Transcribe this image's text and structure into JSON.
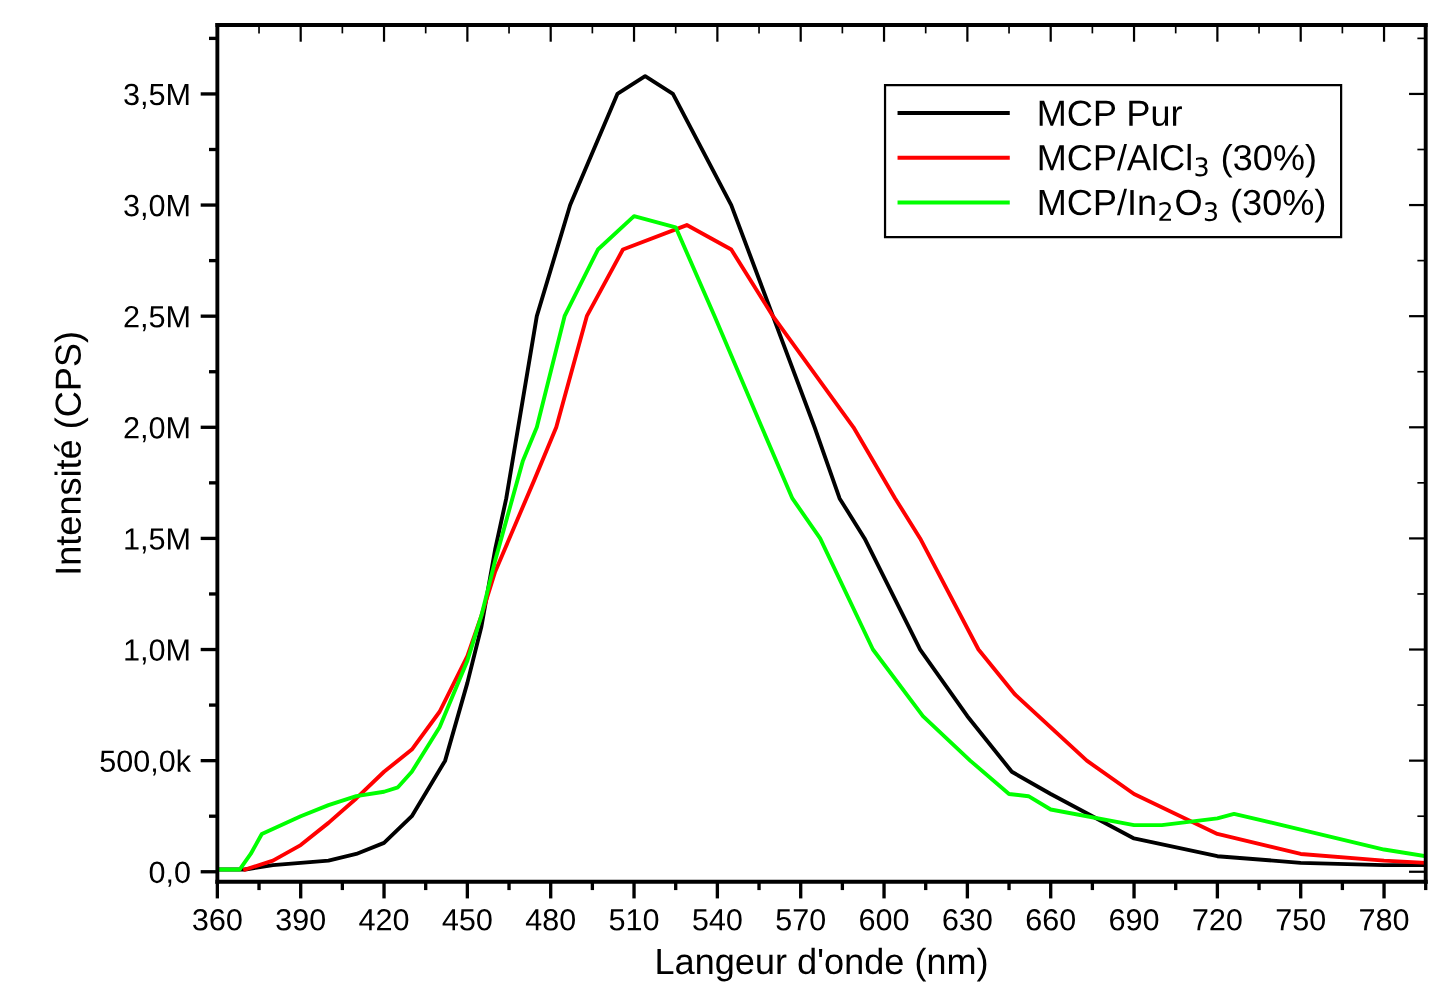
{
  "chart_data": {
    "type": "line",
    "xlabel": "Langeur d'onde (nm)",
    "ylabel": "Intensité (CPS)",
    "xlim": [
      360,
      795
    ],
    "ylim": [
      -45000,
      3810000
    ],
    "xticks": [
      360,
      390,
      420,
      450,
      480,
      510,
      540,
      570,
      600,
      630,
      660,
      690,
      720,
      750,
      780
    ],
    "yticks": [
      {
        "value": 0,
        "label": "0,0"
      },
      {
        "value": 500000,
        "label": "500,0k"
      },
      {
        "value": 1000000,
        "label": "1,0M"
      },
      {
        "value": 1500000,
        "label": "1,5M"
      },
      {
        "value": 2000000,
        "label": "2,0M"
      },
      {
        "value": 2500000,
        "label": "2,5M"
      },
      {
        "value": 3000000,
        "label": "3,0M"
      },
      {
        "value": 3500000,
        "label": "3,5M"
      }
    ],
    "grid": false,
    "legend": "top right",
    "marker": "none",
    "line_style": "solid",
    "series": [
      {
        "name": "MCP Pur",
        "color": "#000000",
        "x": [
          360,
          370,
          380,
          390,
          400,
          410,
          420,
          430,
          442,
          450,
          455,
          460,
          464,
          475,
          487,
          504,
          514,
          524,
          545,
          560,
          575,
          584,
          593,
          613,
          630,
          646,
          660,
          690,
          720,
          750,
          780,
          795
        ],
        "values": [
          10000,
          10000,
          30000,
          40000,
          50000,
          80000,
          130000,
          250000,
          500000,
          850000,
          1100000,
          1450000,
          1680000,
          2500000,
          3000000,
          3500000,
          3580000,
          3500000,
          3000000,
          2500000,
          2000000,
          1680000,
          1500000,
          1000000,
          700000,
          450000,
          350000,
          150000,
          70000,
          40000,
          30000,
          30000
        ]
      },
      {
        "name": "MCP/AlCl$_{3}$ (30%)",
        "color": "#ff0000",
        "x": [
          370,
          380,
          390,
          400,
          410,
          420,
          430,
          440,
          450,
          455,
          460,
          474,
          482,
          493,
          506,
          529,
          545,
          560,
          589,
          604,
          613,
          634,
          647,
          673,
          690,
          720,
          750,
          780,
          795
        ],
        "values": [
          10000,
          50000,
          120000,
          220000,
          330000,
          450000,
          550000,
          720000,
          970000,
          1150000,
          1350000,
          1760000,
          2000000,
          2500000,
          2800000,
          2910000,
          2800000,
          2500000,
          2000000,
          1680000,
          1500000,
          1000000,
          800000,
          500000,
          350000,
          170000,
          80000,
          50000,
          40000
        ]
      },
      {
        "name": "MCP/In$_{2}$O$_{3}$ (30%)",
        "color": "#00ff00",
        "x": [
          360,
          368,
          372,
          376,
          390,
          400,
          410,
          420,
          425,
          430,
          440,
          450,
          455,
          460,
          470,
          475,
          485,
          497,
          510,
          525,
          539,
          556,
          567,
          577,
          596,
          614,
          631,
          645,
          652,
          660,
          690,
          700,
          720,
          726,
          750,
          780,
          795
        ],
        "values": [
          10000,
          10000,
          80000,
          170000,
          250000,
          300000,
          340000,
          360000,
          380000,
          450000,
          650000,
          950000,
          1150000,
          1400000,
          1850000,
          2000000,
          2500000,
          2800000,
          2950000,
          2900000,
          2500000,
          2000000,
          1680000,
          1500000,
          1000000,
          700000,
          500000,
          350000,
          340000,
          280000,
          210000,
          210000,
          240000,
          260000,
          190000,
          100000,
          70000
        ]
      }
    ]
  }
}
